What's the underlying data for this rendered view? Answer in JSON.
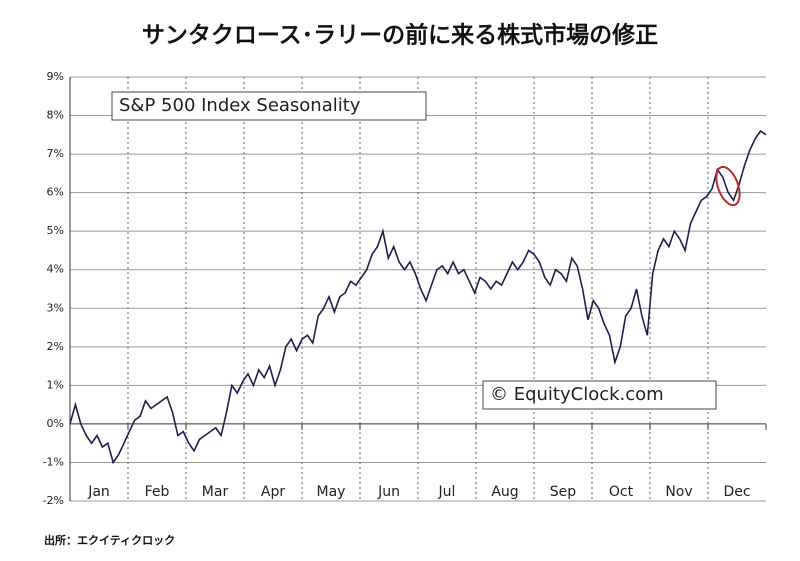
{
  "chart_data": {
    "type": "line",
    "title": "サンタクロース･ラリーの前に来る株式市場の修正",
    "annotations": [
      "S&P 500 Index Seasonality",
      "© EquityClock.com"
    ],
    "source": "出所：エクイティクロック",
    "months": [
      "Jan",
      "Feb",
      "Mar",
      "Apr",
      "May",
      "Jun",
      "Jul",
      "Aug",
      "Sep",
      "Oct",
      "Nov",
      "Dec"
    ],
    "series": [
      {
        "color": "#1f1f4f",
        "values": [
          0,
          0.5,
          0,
          -0.3,
          -0.5,
          -0.3,
          -0.6,
          -0.5,
          -1.0,
          -0.8,
          -0.5,
          -0.2,
          0.1,
          0.2,
          0.6,
          0.4,
          0.5,
          0.6,
          0.7,
          0.3,
          -0.3,
          -0.2,
          -0.5,
          -0.7,
          -0.4,
          -0.3,
          -0.2,
          -0.1,
          -0.3,
          0.3,
          1.0,
          0.8,
          1.1,
          1.3,
          1.0,
          1.4,
          1.2,
          1.5,
          1.0,
          1.4,
          2.0,
          2.2,
          1.9,
          2.2,
          2.3,
          2.1,
          2.8,
          3.0,
          3.3,
          2.9,
          3.3,
          3.4,
          3.7,
          3.6,
          3.8,
          4.0,
          4.4,
          4.6,
          5.0,
          4.3,
          4.6,
          4.2,
          4.0,
          4.2,
          3.9,
          3.5,
          3.2,
          3.6,
          4.0,
          4.1,
          3.9,
          4.2,
          3.9,
          4.0,
          3.7,
          3.4,
          3.8,
          3.7,
          3.5,
          3.7,
          3.6,
          3.9,
          4.2,
          4.0,
          4.2,
          4.5,
          4.4,
          4.2,
          3.8,
          3.6,
          4.0,
          3.9,
          3.7,
          4.3,
          4.1,
          3.5,
          2.7,
          3.2,
          3.0,
          2.6,
          2.3,
          1.6,
          2.0,
          2.8,
          3.0,
          3.5,
          2.8,
          2.3,
          3.9,
          4.5,
          4.8,
          4.6,
          5.0,
          4.8,
          4.5,
          5.2,
          5.5,
          5.8,
          5.9,
          6.1,
          6.6,
          6.4,
          6.0,
          5.8,
          6.2,
          6.7,
          7.1,
          7.4,
          7.6,
          7.5
        ]
      }
    ],
    "ylim": [
      -2,
      9
    ],
    "yticks": [
      {
        "value": -2,
        "label": "-2%"
      },
      {
        "value": -1,
        "label": "-1%"
      },
      {
        "value": 0,
        "label": "0%"
      },
      {
        "value": 1,
        "label": "1%"
      },
      {
        "value": 2,
        "label": "2%"
      },
      {
        "value": 3,
        "label": "3%"
      },
      {
        "value": 4,
        "label": "4%"
      },
      {
        "value": 5,
        "label": "5%"
      },
      {
        "value": 6,
        "label": "6%"
      },
      {
        "value": 7,
        "label": "7%"
      },
      {
        "value": 8,
        "label": "8%"
      },
      {
        "value": 9,
        "label": "9%"
      }
    ],
    "grid": true
  }
}
